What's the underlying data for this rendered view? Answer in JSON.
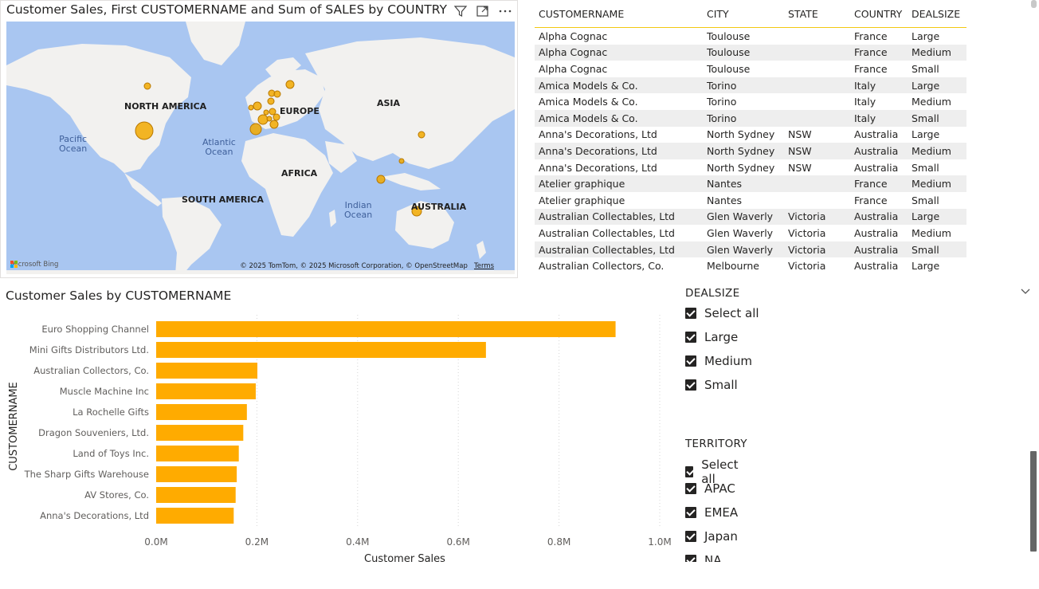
{
  "map": {
    "title": "Customer Sales, First CUSTOMERNAME and Sum of SALES by COUNTRY",
    "continents": [
      {
        "name": "NORTH AMERICA"
      },
      {
        "name": "EUROPE"
      },
      {
        "name": "ASIA"
      },
      {
        "name": "AFRICA"
      },
      {
        "name": "SOUTH AMERICA"
      },
      {
        "name": "AUSTRALIA"
      }
    ],
    "oceans": [
      {
        "line1": "Pacific",
        "line2": "Ocean"
      },
      {
        "line1": "Atlantic",
        "line2": "Ocean"
      },
      {
        "line1": "Indian",
        "line2": "Ocean"
      }
    ],
    "copyright": "© 2025 TomTom, © 2025 Microsoft Corporation, © OpenStreetMap",
    "terms": "Terms",
    "bing": "Microsoft Bing",
    "bubble_color": "#f2a900"
  },
  "table": {
    "headers": [
      "CUSTOMERNAME",
      "CITY",
      "STATE",
      "COUNTRY",
      "DEALSIZE"
    ],
    "rows": [
      [
        "Alpha Cognac",
        "Toulouse",
        "",
        "France",
        "Large"
      ],
      [
        "Alpha Cognac",
        "Toulouse",
        "",
        "France",
        "Medium"
      ],
      [
        "Alpha Cognac",
        "Toulouse",
        "",
        "France",
        "Small"
      ],
      [
        "Amica Models & Co.",
        "Torino",
        "",
        "Italy",
        "Large"
      ],
      [
        "Amica Models & Co.",
        "Torino",
        "",
        "Italy",
        "Medium"
      ],
      [
        "Amica Models & Co.",
        "Torino",
        "",
        "Italy",
        "Small"
      ],
      [
        "Anna's Decorations, Ltd",
        "North Sydney",
        "NSW",
        "Australia",
        "Large"
      ],
      [
        "Anna's Decorations, Ltd",
        "North Sydney",
        "NSW",
        "Australia",
        "Medium"
      ],
      [
        "Anna's Decorations, Ltd",
        "North Sydney",
        "NSW",
        "Australia",
        "Small"
      ],
      [
        "Atelier graphique",
        "Nantes",
        "",
        "France",
        "Medium"
      ],
      [
        "Atelier graphique",
        "Nantes",
        "",
        "France",
        "Small"
      ],
      [
        "Australian Collectables, Ltd",
        "Glen Waverly",
        "Victoria",
        "Australia",
        "Large"
      ],
      [
        "Australian Collectables, Ltd",
        "Glen Waverly",
        "Victoria",
        "Australia",
        "Medium"
      ],
      [
        "Australian Collectables, Ltd",
        "Glen Waverly",
        "Victoria",
        "Australia",
        "Small"
      ],
      [
        "Australian Collectors, Co.",
        "Melbourne",
        "Victoria",
        "Australia",
        "Large"
      ]
    ]
  },
  "chart_data": {
    "type": "bar",
    "orientation": "horizontal",
    "title": "Customer Sales by CUSTOMERNAME",
    "xlabel": "Customer Sales",
    "ylabel": "CUSTOMERNAME",
    "categories": [
      "Euro Shopping Channel",
      "Mini Gifts Distributors Ltd.",
      "Australian Collectors, Co.",
      "Muscle Machine Inc",
      "La Rochelle Gifts",
      "Dragon Souveniers, Ltd.",
      "Land of Toys Inc.",
      "The Sharp Gifts Warehouse",
      "AV Stores, Co.",
      "Anna's Decorations, Ltd"
    ],
    "values": [
      912294,
      654858,
      200995,
      197737,
      180124,
      172990,
      164069,
      160010,
      157808,
      153996
    ],
    "xlim": [
      0,
      1000000
    ],
    "ticks": [
      "0.0M",
      "0.2M",
      "0.4M",
      "0.6M",
      "0.8M",
      "1.0M"
    ],
    "color": "#ffab00",
    "grid": true
  },
  "slicers": {
    "dealsize": {
      "title": "DEALSIZE",
      "items": [
        "Select all",
        "Large",
        "Medium",
        "Small"
      ]
    },
    "territory": {
      "title": "TERRITORY",
      "items": [
        "Select all",
        "APAC",
        "EMEA",
        "Japan",
        "NA"
      ]
    }
  }
}
